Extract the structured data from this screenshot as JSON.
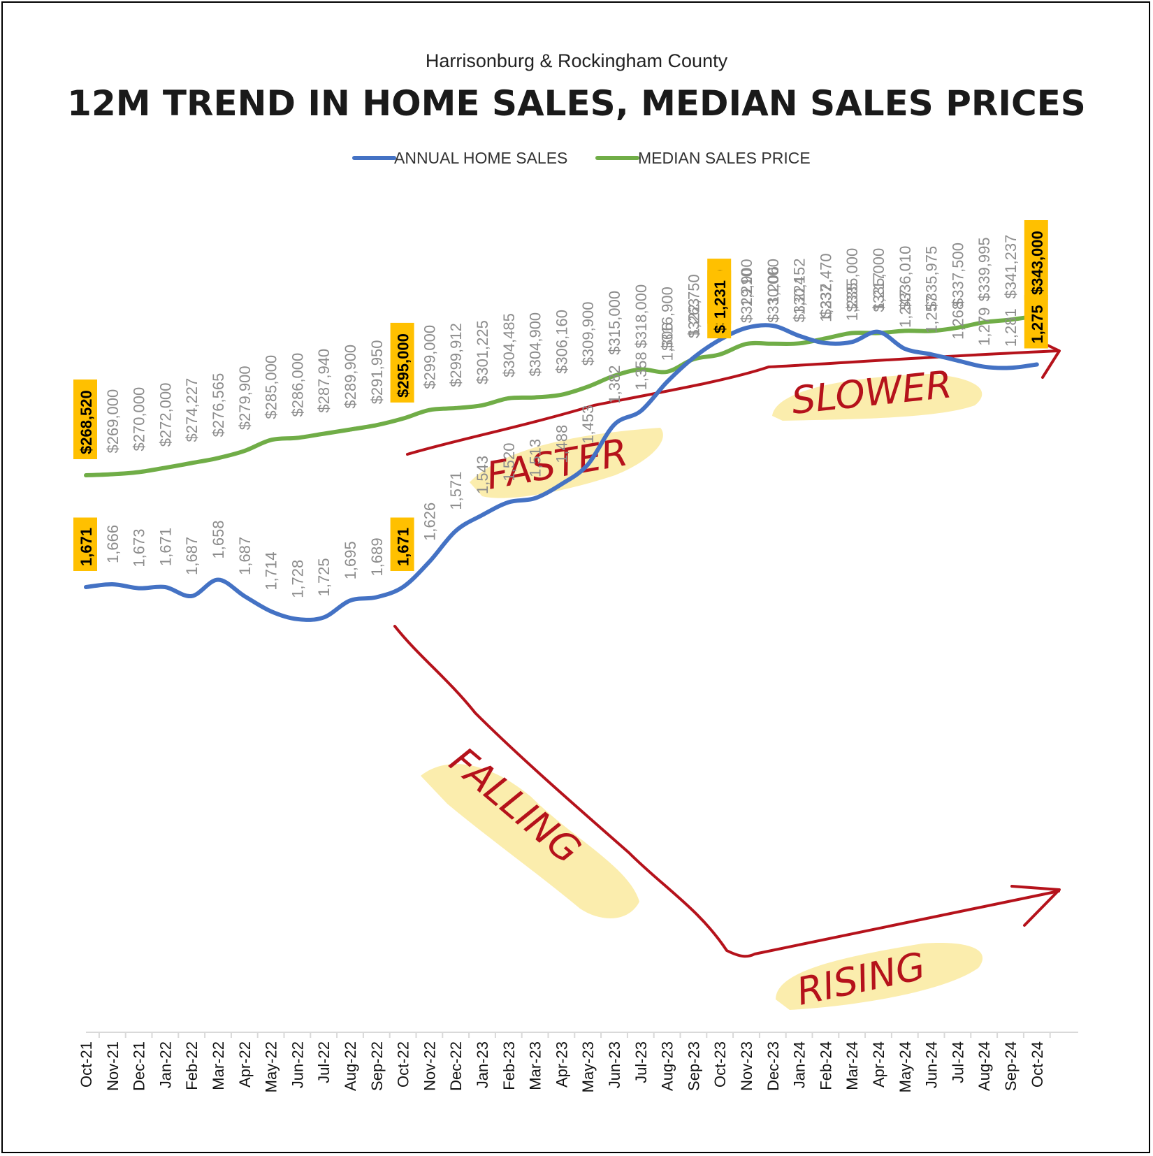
{
  "chart_data": {
    "type": "line",
    "subtitle": "Harrisonburg & Rockingham County",
    "title": "12M TREND IN HOME SALES, MEDIAN SALES PRICES",
    "legend_position": "top",
    "categories": [
      "Oct-21",
      "Nov-21",
      "Dec-21",
      "Jan-22",
      "Feb-22",
      "Mar-22",
      "Apr-22",
      "May-22",
      "Jun-22",
      "Jul-22",
      "Aug-22",
      "Sep-22",
      "Oct-22",
      "Nov-22",
      "Dec-22",
      "Jan-23",
      "Feb-23",
      "Mar-23",
      "Apr-23",
      "May-23",
      "Jun-23",
      "Jul-23",
      "Aug-23",
      "Sep-23",
      "Oct-23",
      "Nov-23",
      "Dec-23",
      "Jan-24",
      "Feb-24",
      "Mar-24",
      "Apr-24",
      "May-24",
      "Jun-24",
      "Jul-24",
      "Aug-24",
      "Sep-24",
      "Oct-24"
    ],
    "series": [
      {
        "name": "ANNUAL HOME SALES",
        "color": "#4472c4",
        "values": [
          1671,
          1666,
          1673,
          1671,
          1687,
          1658,
          1687,
          1714,
          1728,
          1725,
          1695,
          1689,
          1671,
          1626,
          1571,
          1543,
          1520,
          1513,
          1488,
          1453,
          1382,
          1358,
          1306,
          1263,
          1231,
          1210,
          1206,
          1224,
          1237,
          1235,
          1217,
          1247,
          1257,
          1268,
          1279,
          1281,
          1275
        ],
        "labels": [
          "1,671",
          "1,666",
          "1,673",
          "1,671",
          "1,687",
          "1,658",
          "1,687",
          "1,714",
          "1,728",
          "1,725",
          "1,695",
          "1,689",
          "1,671",
          "1,626",
          "1,571",
          "1,543",
          "1,520",
          "1,513",
          "1,488",
          "1,453",
          "1,382",
          "1,358",
          "1,306",
          "1,263",
          "1,231",
          "1,210",
          "1,206",
          "1,224",
          "1,237",
          "1,235",
          "1,217",
          "1,247",
          "1,257",
          "1,268",
          "1,279",
          "1,281",
          "1,275"
        ],
        "highlighted": [
          0,
          12,
          24,
          36
        ]
      },
      {
        "name": "MEDIAN SALES PRICE",
        "color": "#70ad47",
        "values": [
          268520,
          269000,
          270000,
          272000,
          274227,
          276565,
          279900,
          285000,
          286000,
          287940,
          289900,
          291950,
          295000,
          299000,
          299912,
          301225,
          304485,
          304900,
          306160,
          309900,
          315000,
          318000,
          316900,
          322750,
          325000,
          329900,
          330000,
          330152,
          332470,
          335000,
          335000,
          336010,
          335975,
          337500,
          339995,
          341237,
          343000
        ],
        "labels": [
          "$268,520",
          "$269,000",
          "$270,000",
          "$272,000",
          "$274,227",
          "$276,565",
          "$279,900",
          "$285,000",
          "$286,000",
          "$287,940",
          "$289,900",
          "$291,950",
          "$295,000",
          "$299,000",
          "$299,912",
          "$301,225",
          "$304,485",
          "$304,900",
          "$306,160",
          "$309,900",
          "$315,000",
          "$318,000",
          "$316,900",
          "$322,750",
          "$325,000",
          "$329,900",
          "$330,000",
          "$330,152",
          "$332,470",
          "$335,000",
          "$335,000",
          "$336,010",
          "$335,975",
          "$337,500",
          "$339,995",
          "$341,237",
          "$343,000"
        ],
        "highlighted": [
          0,
          12,
          24,
          36
        ]
      }
    ],
    "annotations": [
      "FASTER",
      "SLOWER",
      "FALLING",
      "RISING"
    ],
    "highlight_color": "#ffc000",
    "annotation_color": "#b5121b"
  }
}
